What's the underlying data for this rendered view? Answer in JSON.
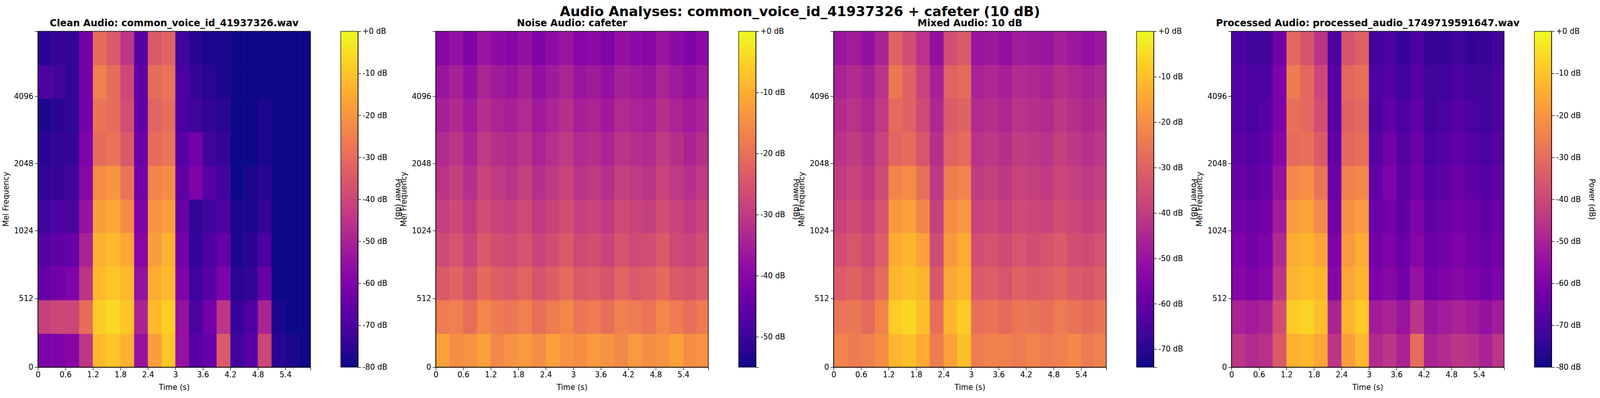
{
  "title": "Audio Analyses: common_voice_id_41937326 + cafeter (10 dB)",
  "chart_data": [
    {
      "type": "heatmap",
      "title": "Clean Audio: common_voice_id_41937326.wav",
      "xlabel": "Time (s)",
      "ylabel": "Mel Frequency",
      "x_bins": [
        0,
        0.3,
        0.6,
        0.9,
        1.2,
        1.5,
        1.8,
        2.1,
        2.4,
        2.7,
        3,
        3.3,
        3.6,
        3.9,
        4.2,
        4.5,
        4.8,
        5.1,
        5.4,
        5.7,
        5.95
      ],
      "y_bins": [
        0,
        250,
        500,
        750,
        1000,
        1414,
        2000,
        2828,
        4000,
        5657,
        8000
      ],
      "cells": [
        [
          -60,
          -60,
          -58,
          -45,
          -12,
          -10,
          -14,
          -55,
          -18,
          -10,
          -55,
          -68,
          -65,
          -35,
          -72,
          -68,
          -40,
          -76,
          -78,
          -80
        ],
        [
          -42,
          -40,
          -40,
          -30,
          -8,
          -6,
          -10,
          -50,
          -12,
          -8,
          -55,
          -70,
          -62,
          -45,
          -74,
          -70,
          -50,
          -78,
          -80,
          -80
        ],
        [
          -65,
          -62,
          -60,
          -45,
          -12,
          -10,
          -12,
          -55,
          -15,
          -12,
          -60,
          -72,
          -68,
          -60,
          -76,
          -75,
          -65,
          -80,
          -80,
          -80
        ],
        [
          -68,
          -66,
          -65,
          -50,
          -14,
          -12,
          -16,
          -58,
          -18,
          -14,
          -62,
          -74,
          -70,
          -65,
          -78,
          -76,
          -70,
          -80,
          -80,
          -80
        ],
        [
          -72,
          -70,
          -70,
          -55,
          -18,
          -16,
          -22,
          -60,
          -20,
          -18,
          -65,
          -75,
          -72,
          -70,
          -78,
          -78,
          -74,
          -80,
          -80,
          -80
        ],
        [
          -75,
          -74,
          -72,
          -58,
          -22,
          -20,
          -28,
          -62,
          -24,
          -22,
          -66,
          -60,
          -68,
          -72,
          -80,
          -78,
          -76,
          -80,
          -80,
          -80
        ],
        [
          -76,
          -75,
          -74,
          -60,
          -30,
          -28,
          -35,
          -64,
          -30,
          -28,
          -68,
          -62,
          -72,
          -74,
          -80,
          -80,
          -78,
          -80,
          -80,
          -80
        ],
        [
          -78,
          -76,
          -75,
          -62,
          -28,
          -30,
          -38,
          -66,
          -32,
          -30,
          -70,
          -72,
          -75,
          -76,
          -80,
          -80,
          -78,
          -80,
          -80,
          -80
        ],
        [
          -70,
          -72,
          -75,
          -62,
          -25,
          -30,
          -40,
          -66,
          -30,
          -28,
          -70,
          -74,
          -76,
          -78,
          -80,
          -80,
          -80,
          -80,
          -80,
          -80
        ],
        [
          -76,
          -74,
          -75,
          -62,
          -30,
          -35,
          -45,
          -68,
          -35,
          -32,
          -72,
          -76,
          -78,
          -78,
          -80,
          -80,
          -80,
          -80,
          -80,
          -80
        ]
      ],
      "xlim": [
        0,
        5.95
      ],
      "ylim": [
        0,
        8000
      ],
      "xticks": [
        0,
        0.6,
        1.2,
        1.8,
        2.4,
        3,
        3.6,
        4.2,
        4.8,
        5.4
      ],
      "yticks": [
        0,
        512,
        1024,
        2048,
        4096
      ],
      "colorbar": {
        "range": [
          -80,
          0
        ],
        "label": "Power (dB)",
        "ticks": [
          {
            "value": 0,
            "label": "+0 dB"
          },
          {
            "value": -10,
            "label": "-10 dB"
          },
          {
            "value": -20,
            "label": "-20 dB"
          },
          {
            "value": -30,
            "label": "-30 dB"
          },
          {
            "value": -40,
            "label": "-40 dB"
          },
          {
            "value": -50,
            "label": "-50 dB"
          },
          {
            "value": -60,
            "label": "-60 dB"
          },
          {
            "value": -70,
            "label": "-70 dB"
          },
          {
            "value": -80,
            "label": "-80 dB"
          }
        ]
      }
    },
    {
      "type": "heatmap",
      "title": "Noise Audio: cafeter",
      "xlabel": "Time (s)",
      "ylabel": "Mel Frequency",
      "x_bins": [
        0,
        0.3,
        0.6,
        0.9,
        1.2,
        1.5,
        1.8,
        2.1,
        2.4,
        2.7,
        3,
        3.3,
        3.6,
        3.9,
        4.2,
        4.5,
        4.8,
        5.1,
        5.4,
        5.7,
        5.95
      ],
      "y_bins": [
        0,
        250,
        500,
        750,
        1000,
        1414,
        2000,
        2828,
        4000,
        5657,
        8000
      ],
      "cells": [
        [
          -12,
          -15,
          -14,
          -12,
          -16,
          -14,
          -13,
          -15,
          -12,
          -14,
          -15,
          -13,
          -14,
          -16,
          -13,
          -15,
          -14,
          -12,
          -15,
          -14
        ],
        [
          -18,
          -17,
          -20,
          -16,
          -18,
          -19,
          -17,
          -20,
          -18,
          -16,
          -19,
          -18,
          -20,
          -17,
          -18,
          -19,
          -16,
          -18,
          -20,
          -18
        ],
        [
          -24,
          -22,
          -25,
          -21,
          -23,
          -24,
          -22,
          -25,
          -23,
          -21,
          -24,
          -23,
          -25,
          -22,
          -24,
          -23,
          -21,
          -24,
          -25,
          -23
        ],
        [
          -27,
          -25,
          -28,
          -24,
          -26,
          -27,
          -25,
          -28,
          -26,
          -24,
          -27,
          -26,
          -28,
          -25,
          -27,
          -26,
          -24,
          -27,
          -28,
          -26
        ],
        [
          -29,
          -27,
          -30,
          -26,
          -28,
          -29,
          -27,
          -30,
          -28,
          -26,
          -29,
          -28,
          -30,
          -27,
          -28,
          -29,
          -26,
          -28,
          -30,
          -28
        ],
        [
          -31,
          -29,
          -32,
          -28,
          -30,
          -31,
          -29,
          -32,
          -30,
          -28,
          -31,
          -30,
          -32,
          -29,
          -30,
          -31,
          -28,
          -30,
          -32,
          -30
        ],
        [
          -33,
          -31,
          -34,
          -30,
          -32,
          -33,
          -31,
          -34,
          -32,
          -30,
          -33,
          -32,
          -34,
          -31,
          -32,
          -33,
          -30,
          -32,
          -34,
          -32
        ],
        [
          -35,
          -33,
          -36,
          -32,
          -34,
          -35,
          -33,
          -36,
          -34,
          -32,
          -35,
          -34,
          -36,
          -33,
          -34,
          -35,
          -32,
          -34,
          -36,
          -34
        ],
        [
          -37,
          -35,
          -38,
          -34,
          -36,
          -37,
          -35,
          -38,
          -36,
          -34,
          -37,
          -36,
          -38,
          -35,
          -36,
          -37,
          -34,
          -36,
          -38,
          -36
        ],
        [
          -40,
          -38,
          -41,
          -37,
          -39,
          -40,
          -38,
          -41,
          -39,
          -37,
          -40,
          -39,
          -41,
          -38,
          -39,
          -40,
          -37,
          -39,
          -41,
          -39
        ]
      ],
      "xlim": [
        0,
        5.95
      ],
      "ylim": [
        0,
        8000
      ],
      "xticks": [
        0,
        0.6,
        1.2,
        1.8,
        2.4,
        3,
        3.6,
        4.2,
        4.8,
        5.4
      ],
      "yticks": [
        0,
        512,
        1024,
        2048,
        4096
      ],
      "colorbar": {
        "range": [
          -55,
          0
        ],
        "label": "Power (dB)",
        "ticks": [
          {
            "value": 0,
            "label": "+0 dB"
          },
          {
            "value": -10,
            "label": "-10 dB"
          },
          {
            "value": -20,
            "label": "-20 dB"
          },
          {
            "value": -30,
            "label": "-30 dB"
          },
          {
            "value": -40,
            "label": "-40 dB"
          },
          {
            "value": -50,
            "label": "-50 dB"
          }
        ]
      }
    },
    {
      "type": "heatmap",
      "title": "Mixed Audio: 10 dB",
      "xlabel": "Time (s)",
      "ylabel": "Mel Frequency",
      "x_bins": [
        0,
        0.3,
        0.6,
        0.9,
        1.2,
        1.5,
        1.8,
        2.1,
        2.4,
        2.7,
        3,
        3.3,
        3.6,
        3.9,
        4.2,
        4.5,
        4.8,
        5.1,
        5.4,
        5.7,
        5.95
      ],
      "y_bins": [
        0,
        250,
        500,
        750,
        1000,
        1414,
        2000,
        2828,
        4000,
        5657,
        8000
      ],
      "cells": [
        [
          -22,
          -24,
          -23,
          -20,
          -12,
          -10,
          -14,
          -24,
          -16,
          -10,
          -24,
          -22,
          -23,
          -24,
          -22,
          -24,
          -23,
          -21,
          -24,
          -23
        ],
        [
          -26,
          -25,
          -28,
          -22,
          -8,
          -6,
          -10,
          -27,
          -12,
          -8,
          -27,
          -26,
          -28,
          -25,
          -26,
          -27,
          -24,
          -26,
          -28,
          -26
        ],
        [
          -32,
          -30,
          -33,
          -28,
          -12,
          -10,
          -12,
          -33,
          -15,
          -12,
          -32,
          -31,
          -33,
          -30,
          -32,
          -31,
          -29,
          -32,
          -33,
          -31
        ],
        [
          -35,
          -33,
          -36,
          -31,
          -14,
          -12,
          -16,
          -36,
          -18,
          -14,
          -35,
          -34,
          -36,
          -33,
          -35,
          -34,
          -32,
          -35,
          -36,
          -34
        ],
        [
          -38,
          -36,
          -39,
          -34,
          -18,
          -16,
          -22,
          -39,
          -20,
          -18,
          -38,
          -37,
          -39,
          -36,
          -37,
          -38,
          -35,
          -37,
          -39,
          -37
        ],
        [
          -40,
          -38,
          -41,
          -36,
          -22,
          -20,
          -27,
          -41,
          -24,
          -22,
          -40,
          -39,
          -41,
          -38,
          -39,
          -40,
          -37,
          -39,
          -41,
          -39
        ],
        [
          -42,
          -40,
          -43,
          -38,
          -29,
          -28,
          -33,
          -43,
          -30,
          -28,
          -42,
          -41,
          -43,
          -40,
          -41,
          -42,
          -39,
          -41,
          -43,
          -41
        ],
        [
          -44,
          -42,
          -45,
          -40,
          -28,
          -30,
          -36,
          -45,
          -32,
          -30,
          -44,
          -43,
          -45,
          -42,
          -43,
          -44,
          -41,
          -43,
          -45,
          -43
        ],
        [
          -46,
          -44,
          -47,
          -42,
          -25,
          -30,
          -38,
          -47,
          -30,
          -28,
          -46,
          -45,
          -47,
          -44,
          -45,
          -46,
          -43,
          -45,
          -47,
          -45
        ],
        [
          -50,
          -48,
          -51,
          -46,
          -30,
          -35,
          -42,
          -51,
          -35,
          -32,
          -50,
          -49,
          -51,
          -48,
          -49,
          -50,
          -47,
          -49,
          -51,
          -49
        ]
      ],
      "xlim": [
        0,
        5.95
      ],
      "ylim": [
        0,
        8000
      ],
      "xticks": [
        0,
        0.6,
        1.2,
        1.8,
        2.4,
        3,
        3.6,
        4.2,
        4.8,
        5.4
      ],
      "yticks": [
        0,
        512,
        1024,
        2048,
        4096
      ],
      "colorbar": {
        "range": [
          -74,
          0
        ],
        "label": "Power (dB)",
        "ticks": [
          {
            "value": 0,
            "label": "+0 dB"
          },
          {
            "value": -10,
            "label": "-10 dB"
          },
          {
            "value": -20,
            "label": "-20 dB"
          },
          {
            "value": -30,
            "label": "-30 dB"
          },
          {
            "value": -40,
            "label": "-40 dB"
          },
          {
            "value": -50,
            "label": "-50 dB"
          },
          {
            "value": -60,
            "label": "-60 dB"
          },
          {
            "value": -70,
            "label": "-70 dB"
          }
        ]
      }
    },
    {
      "type": "heatmap",
      "title": "Processed Audio: processed_audio_1749719591647.wav",
      "xlabel": "Time (s)",
      "ylabel": "Mel Frequency",
      "x_bins": [
        0,
        0.3,
        0.6,
        0.9,
        1.2,
        1.5,
        1.8,
        2.1,
        2.4,
        2.7,
        3,
        3.3,
        3.6,
        3.9,
        4.2,
        4.5,
        4.8,
        5.1,
        5.4,
        5.7,
        5.95
      ],
      "y_bins": [
        0,
        250,
        500,
        750,
        1000,
        1414,
        2000,
        2828,
        4000,
        5657,
        8000
      ],
      "cells": [
        [
          -45,
          -48,
          -46,
          -35,
          -14,
          -12,
          -16,
          -45,
          -18,
          -12,
          -48,
          -45,
          -50,
          -30,
          -50,
          -48,
          -45,
          -46,
          -50,
          -45
        ],
        [
          -50,
          -52,
          -50,
          -38,
          -9,
          -7,
          -11,
          -50,
          -13,
          -9,
          -52,
          -50,
          -54,
          -45,
          -54,
          -52,
          -50,
          -52,
          -55,
          -52
        ],
        [
          -58,
          -60,
          -58,
          -45,
          -13,
          -11,
          -13,
          -58,
          -16,
          -13,
          -60,
          -58,
          -62,
          -55,
          -62,
          -60,
          -58,
          -60,
          -62,
          -60
        ],
        [
          -60,
          -62,
          -60,
          -48,
          -15,
          -13,
          -17,
          -60,
          -19,
          -15,
          -62,
          -60,
          -64,
          -58,
          -64,
          -62,
          -60,
          -62,
          -64,
          -62
        ],
        [
          -62,
          -64,
          -62,
          -52,
          -19,
          -17,
          -23,
          -62,
          -21,
          -19,
          -64,
          -62,
          -66,
          -60,
          -66,
          -64,
          -62,
          -64,
          -66,
          -64
        ],
        [
          -64,
          -66,
          -64,
          -55,
          -23,
          -21,
          -28,
          -64,
          -25,
          -23,
          -66,
          -60,
          -66,
          -62,
          -68,
          -66,
          -64,
          -66,
          -68,
          -66
        ],
        [
          -66,
          -68,
          -66,
          -58,
          -30,
          -29,
          -35,
          -66,
          -31,
          -29,
          -68,
          -62,
          -68,
          -64,
          -70,
          -68,
          -66,
          -68,
          -70,
          -68
        ],
        [
          -68,
          -70,
          -68,
          -60,
          -29,
          -31,
          -38,
          -68,
          -33,
          -31,
          -70,
          -66,
          -70,
          -66,
          -72,
          -70,
          -68,
          -70,
          -72,
          -70
        ],
        [
          -68,
          -70,
          -70,
          -60,
          -26,
          -31,
          -40,
          -68,
          -31,
          -29,
          -70,
          -68,
          -72,
          -68,
          -72,
          -72,
          -70,
          -72,
          -72,
          -70
        ],
        [
          -70,
          -72,
          -72,
          -62,
          -31,
          -36,
          -45,
          -70,
          -36,
          -33,
          -72,
          -70,
          -74,
          -70,
          -74,
          -74,
          -72,
          -74,
          -74,
          -72
        ]
      ],
      "xlim": [
        0,
        5.95
      ],
      "ylim": [
        0,
        8000
      ],
      "xticks": [
        0,
        0.6,
        1.2,
        1.8,
        2.4,
        3,
        3.6,
        4.2,
        4.8,
        5.4
      ],
      "yticks": [
        0,
        512,
        1024,
        2048,
        4096
      ],
      "colorbar": {
        "range": [
          -80,
          0
        ],
        "label": "Power (dB)",
        "ticks": [
          {
            "value": 0,
            "label": "+0 dB"
          },
          {
            "value": -10,
            "label": "-10 dB"
          },
          {
            "value": -20,
            "label": "-20 dB"
          },
          {
            "value": -30,
            "label": "-30 dB"
          },
          {
            "value": -40,
            "label": "-40 dB"
          },
          {
            "value": -50,
            "label": "-50 dB"
          },
          {
            "value": -60,
            "label": "-60 dB"
          },
          {
            "value": -70,
            "label": "-70 dB"
          },
          {
            "value": -80,
            "label": "-80 dB"
          }
        ]
      }
    }
  ]
}
